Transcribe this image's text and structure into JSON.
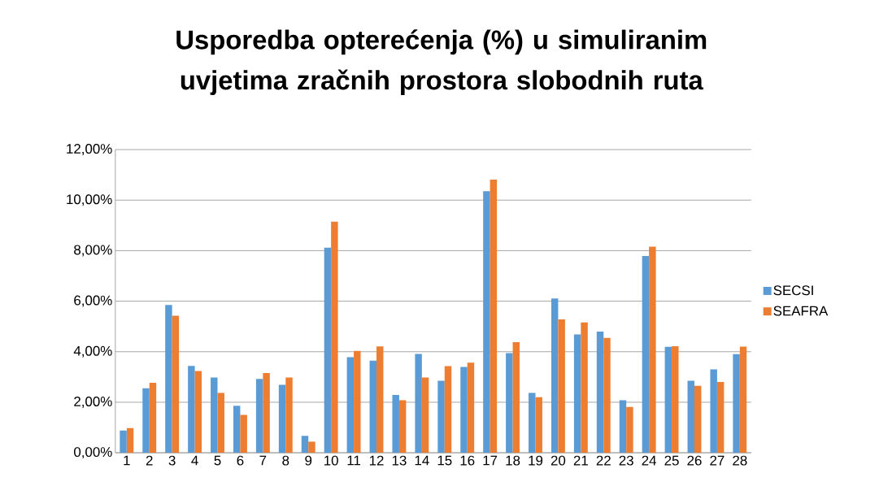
{
  "chart_data": {
    "type": "bar",
    "title": "Usporedba opterećenja (%) u simuliranim uvjetima zračnih prostora slobodnih ruta",
    "categories": [
      "1",
      "2",
      "3",
      "4",
      "5",
      "6",
      "7",
      "8",
      "9",
      "10",
      "11",
      "12",
      "13",
      "14",
      "15",
      "16",
      "17",
      "18",
      "19",
      "20",
      "21",
      "22",
      "23",
      "24",
      "25",
      "26",
      "27",
      "28"
    ],
    "series": [
      {
        "name": "SECSI",
        "color": "#5b9bd5",
        "values": [
          0.88,
          2.55,
          5.85,
          3.44,
          2.98,
          1.86,
          2.92,
          2.69,
          0.67,
          8.12,
          3.78,
          3.65,
          2.29,
          3.91,
          2.85,
          3.4,
          10.35,
          3.94,
          2.37,
          6.11,
          4.68,
          4.8,
          2.08,
          7.79,
          4.19,
          2.85,
          3.3,
          3.9
        ]
      },
      {
        "name": "SEAFRA",
        "color": "#ed7d31",
        "values": [
          0.98,
          2.77,
          5.42,
          3.24,
          2.37,
          1.5,
          3.16,
          2.98,
          0.44,
          9.15,
          4.03,
          4.21,
          2.08,
          2.98,
          3.43,
          3.57,
          10.81,
          4.38,
          2.2,
          5.28,
          5.16,
          4.55,
          1.81,
          8.16,
          4.22,
          2.65,
          2.8,
          4.2
        ]
      }
    ],
    "ylim": [
      0,
      12
    ],
    "yticks": [
      {
        "value": 0,
        "label": "0,00%"
      },
      {
        "value": 2,
        "label": "2,00%"
      },
      {
        "value": 4,
        "label": "4,00%"
      },
      {
        "value": 6,
        "label": "6,00%"
      },
      {
        "value": 8,
        "label": "8,00%"
      },
      {
        "value": 10,
        "label": "10,00%"
      },
      {
        "value": 12,
        "label": "12,00%"
      }
    ],
    "grid": "y",
    "legend": "right"
  }
}
